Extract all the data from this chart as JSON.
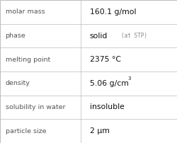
{
  "rows": [
    {
      "label": "molar mass",
      "value": "160.1 g/mol",
      "type": "plain"
    },
    {
      "label": "phase",
      "value": "solid",
      "extra": "(at STP)",
      "type": "phase"
    },
    {
      "label": "melting point",
      "value": "2375 °C",
      "type": "plain"
    },
    {
      "label": "density",
      "value": "5.06 g/cm",
      "superscript": "3",
      "type": "super"
    },
    {
      "label": "solubility in water",
      "value": "insoluble",
      "type": "plain"
    },
    {
      "label": "particle size",
      "value": "2 μm",
      "type": "plain"
    }
  ],
  "col_split": 0.455,
  "background": "#ffffff",
  "border_color": "#bbbbbb",
  "label_color": "#555555",
  "value_color": "#111111",
  "extra_color": "#888888",
  "label_fontsize": 6.8,
  "value_fontsize": 7.8,
  "extra_fontsize": 5.5,
  "super_fontsize": 5.0
}
